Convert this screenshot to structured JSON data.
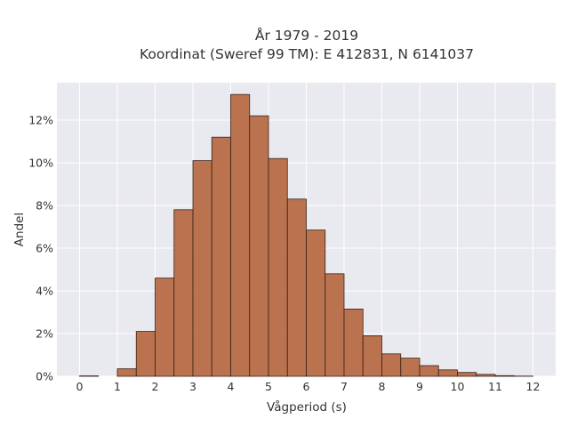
{
  "chart_data": {
    "type": "bar",
    "title": "År 1979 - 2019",
    "subtitle": "Koordinat (Sweref 99 TM): E 412831, N 6141037",
    "xlabel": "Vågperiod (s)",
    "ylabel": "Andel",
    "xlim": [
      -0.6,
      12.6
    ],
    "ylim": [
      0,
      0.1375
    ],
    "x_ticks": [
      0,
      1,
      2,
      3,
      4,
      5,
      6,
      7,
      8,
      9,
      10,
      11,
      12
    ],
    "y_ticks": [
      0,
      0.02,
      0.04,
      0.06,
      0.08,
      0.1,
      0.12
    ],
    "y_tick_labels": [
      "0%",
      "2%",
      "4%",
      "6%",
      "8%",
      "10%",
      "12%"
    ],
    "grid": true,
    "bin_width": 0.5,
    "bins": [
      {
        "x0": 0.0,
        "x1": 0.5,
        "value": 0.0002
      },
      {
        "x0": 0.5,
        "x1": 1.0,
        "value": 0.0
      },
      {
        "x0": 1.0,
        "x1": 1.5,
        "value": 0.0035
      },
      {
        "x0": 1.5,
        "x1": 2.0,
        "value": 0.021
      },
      {
        "x0": 2.0,
        "x1": 2.5,
        "value": 0.046
      },
      {
        "x0": 2.5,
        "x1": 3.0,
        "value": 0.078
      },
      {
        "x0": 3.0,
        "x1": 3.5,
        "value": 0.101
      },
      {
        "x0": 3.5,
        "x1": 4.0,
        "value": 0.112
      },
      {
        "x0": 4.0,
        "x1": 4.5,
        "value": 0.132
      },
      {
        "x0": 4.5,
        "x1": 5.0,
        "value": 0.122
      },
      {
        "x0": 5.0,
        "x1": 5.5,
        "value": 0.102
      },
      {
        "x0": 5.5,
        "x1": 6.0,
        "value": 0.083
      },
      {
        "x0": 6.0,
        "x1": 6.5,
        "value": 0.0685
      },
      {
        "x0": 6.5,
        "x1": 7.0,
        "value": 0.048
      },
      {
        "x0": 7.0,
        "x1": 7.5,
        "value": 0.0315
      },
      {
        "x0": 7.5,
        "x1": 8.0,
        "value": 0.019
      },
      {
        "x0": 8.0,
        "x1": 8.5,
        "value": 0.0105
      },
      {
        "x0": 8.5,
        "x1": 9.0,
        "value": 0.0085
      },
      {
        "x0": 9.0,
        "x1": 9.5,
        "value": 0.005
      },
      {
        "x0": 9.5,
        "x1": 10.0,
        "value": 0.003
      },
      {
        "x0": 10.0,
        "x1": 10.5,
        "value": 0.0018
      },
      {
        "x0": 10.5,
        "x1": 11.0,
        "value": 0.0009
      },
      {
        "x0": 11.0,
        "x1": 11.5,
        "value": 0.0003
      },
      {
        "x0": 11.5,
        "x1": 12.0,
        "value": 0.0001
      }
    ],
    "colors": {
      "bar_fill": "#b5653d",
      "bar_stroke": "#3a2418",
      "plot_bg": "#e9e9f0",
      "grid": "#ffffff"
    }
  }
}
